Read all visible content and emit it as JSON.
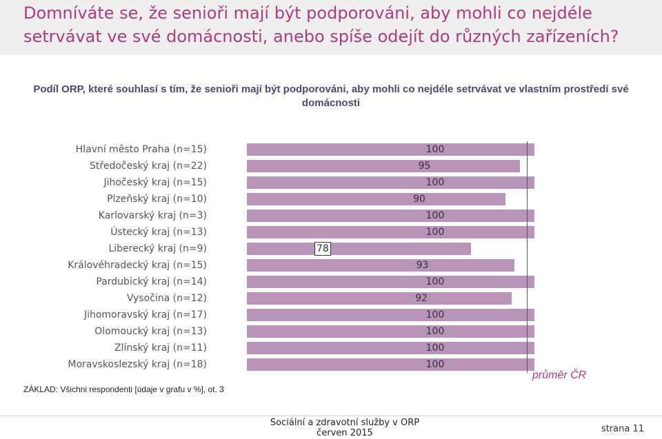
{
  "header": {
    "title": "Domníváte se, že senioři mají být podporováni, aby mohli co nejdéle setrvávat ve své domácnosti, anebo spíše odejít do různých zařízeních?"
  },
  "chart_data": {
    "type": "bar",
    "orientation": "horizontal",
    "title": "Podíl ORP, které souhlasí s tím, že senioři mají být podporováni, aby mohli co nejdéle setrvávat ve vlastním prostředí své domácnosti",
    "categories": [
      "Hlavní město Praha (n=15)",
      "Středočeský kraj (n=22)",
      "Jihočeský kraj (n=15)",
      "Plzeňský kraj (n=10)",
      "Karlovarský kraj (n=3)",
      "Ústecký kraj (n=13)",
      "Liberecký kraj (n=9)",
      "Královéhradecký kraj (n=15)",
      "Pardubický kraj (n=14)",
      "Vysočina (n=12)",
      "Jihomoravský kraj (n=17)",
      "Olomoucký kraj (n=13)",
      "Zlínský kraj (n=11)",
      "Moravskoslezský kraj (n=18)"
    ],
    "values": [
      100,
      95,
      100,
      90,
      100,
      100,
      78,
      93,
      100,
      92,
      100,
      100,
      100,
      100
    ],
    "value_labels": [
      "100",
      "95",
      "100",
      "90",
      "100",
      "100",
      "78",
      "93",
      "100",
      "92",
      "100",
      "100",
      "100",
      "100"
    ],
    "highlighted_value": "78",
    "xlim": [
      0,
      100
    ],
    "reference_line": {
      "label": "průměr ČR",
      "value": 97
    },
    "bar_color": "#b994b9",
    "reference_label_color": "#b03a7e"
  },
  "base_note": "ZÁKLAD: Všichni respondenti [údaje v grafu v %], ot. 3",
  "footer": {
    "line1": "Sociální a zdravotní služby v ORP",
    "line2": "červen 2015",
    "page": "strana 11"
  }
}
